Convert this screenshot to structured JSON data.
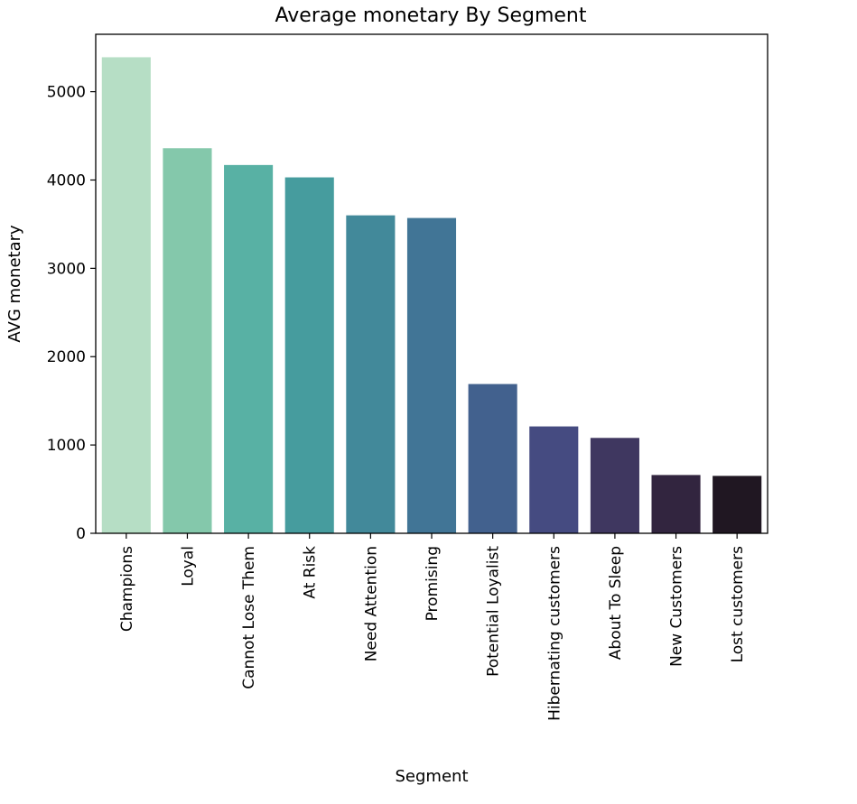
{
  "chart_data": {
    "type": "bar",
    "title": "Average monetary By Segment",
    "xlabel": "Segment",
    "ylabel": "AVG monetary",
    "ylim": [
      0,
      5650
    ],
    "yticks": [
      0,
      1000,
      2000,
      3000,
      4000,
      5000
    ],
    "grid": false,
    "categories": [
      "Champions",
      "Loyal",
      "Cannot Lose Them",
      "At Risk",
      "Need Attention",
      "Promising",
      "Potential Loyalist",
      "Hibernating customers",
      "About To Sleep",
      "New Customers",
      "Lost customers"
    ],
    "values": [
      5390,
      4360,
      4170,
      4030,
      3600,
      3570,
      1690,
      1210,
      1080,
      660,
      650
    ],
    "colors": [
      "#b6dec5",
      "#84c8ab",
      "#58b1a4",
      "#469c9e",
      "#42899a",
      "#417596",
      "#42618e",
      "#454b81",
      "#3f3760",
      "#32253f",
      "#201722"
    ]
  }
}
